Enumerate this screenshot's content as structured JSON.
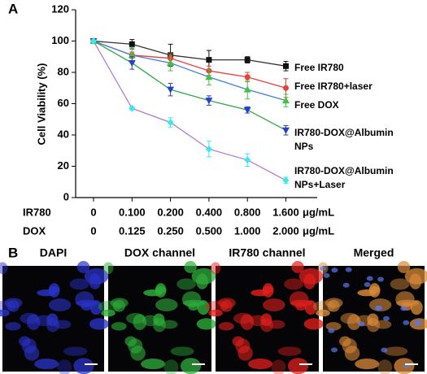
{
  "chart_data": {
    "type": "line",
    "ylabel": "Cell Viability (%)",
    "x_row_labels": [
      "IR780",
      "DOX"
    ],
    "x_unit": "μg/mL",
    "categories": [
      "0",
      "0.100",
      "0.200",
      "0.400",
      "0.800",
      "1.600"
    ],
    "categories2": [
      "0",
      "0.125",
      "0.250",
      "0.500",
      "1.000",
      "2.000"
    ],
    "ylim": [
      0,
      120
    ],
    "yticks": [
      0,
      20,
      40,
      60,
      80,
      100,
      120
    ],
    "series": [
      {
        "name": "Free IR780",
        "color": "#333333",
        "marker_color": "#111111",
        "marker": "square",
        "values": [
          100,
          98,
          91,
          88,
          88,
          84
        ],
        "errors": [
          0,
          3,
          7,
          6,
          2,
          3
        ]
      },
      {
        "name": "Free IR780+laser",
        "color": "#e8403a",
        "marker_color": "#e8403a",
        "marker": "circle",
        "values": [
          100,
          91,
          89,
          81,
          77,
          70
        ],
        "errors": [
          0,
          2,
          3,
          3,
          3,
          6
        ]
      },
      {
        "name": "Free DOX",
        "color": "#3f7fd9",
        "marker_color": "#3fc23f",
        "marker": "triangle-up",
        "values": [
          100,
          91,
          86,
          77,
          69,
          62
        ],
        "errors": [
          0,
          5,
          5,
          5,
          6,
          4
        ]
      },
      {
        "name": "IR780-DOX@Albumin NPs",
        "color": "#2ea84a",
        "marker_color": "#2a3fc8",
        "marker": "triangle-down",
        "values": [
          100,
          86,
          69,
          62,
          56,
          43
        ],
        "errors": [
          0,
          4,
          4,
          3,
          2,
          3
        ]
      },
      {
        "name": "IR780-DOX@Albumin NPs+Laser",
        "color": "#b07ad8",
        "marker_color": "#3ce8ec",
        "marker": "diamond",
        "values": [
          100,
          57,
          48,
          31,
          24,
          11
        ],
        "errors": [
          0,
          1,
          3,
          5,
          4,
          2
        ]
      }
    ]
  },
  "panel_labels": [
    "A",
    "B"
  ],
  "images": [
    {
      "title": "DAPI",
      "color": "#2a33c8"
    },
    {
      "title": "DOX channel",
      "color": "#2fae3a"
    },
    {
      "title": "IR780 channel",
      "color": "#e0201c"
    },
    {
      "title": "Merged",
      "color": "#d98a3a"
    }
  ]
}
